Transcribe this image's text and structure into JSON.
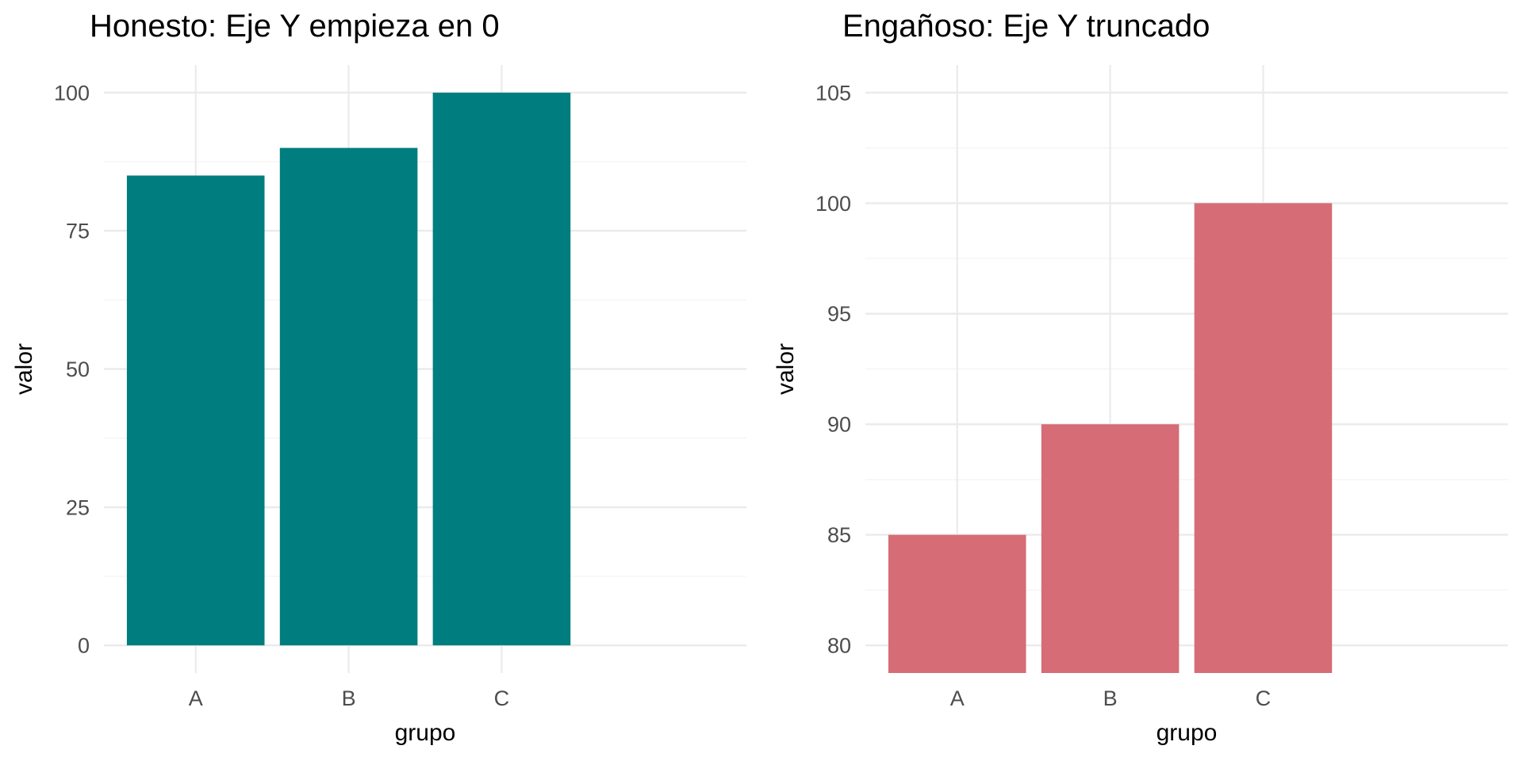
{
  "page": {
    "background_color": "#FFFFFF"
  },
  "styles": {
    "major_gridline_color": "#EBEBEB",
    "minor_gridline_color": "#F5F5F5",
    "tick_label_color": "#4D4D4D",
    "title_color": "#000000",
    "axis_title_color": "#000000",
    "honest_bar_color": "#007D7E",
    "deceptive_bar_color": "#D66C75"
  },
  "chart_data": [
    {
      "type": "bar",
      "name": "honest",
      "title": "Honesto: Eje Y empieza en 0",
      "xlabel": "grupo",
      "ylabel": "valor",
      "categories": [
        "A",
        "B",
        "C"
      ],
      "values": [
        85,
        90,
        100
      ],
      "bar_color": "#007D7E",
      "ylim": [
        -5,
        105
      ],
      "yticks": [
        0,
        25,
        50,
        75,
        100
      ],
      "minor_gridlines_between_ticks": true,
      "bar_base_value": 0,
      "grid": true,
      "legend": "none",
      "title_x_offset": 113
    },
    {
      "type": "bar",
      "name": "deceptive",
      "title": "Engañoso: Eje Y truncado",
      "xlabel": "grupo",
      "ylabel": "valor",
      "categories": [
        "A",
        "B",
        "C"
      ],
      "values": [
        85,
        90,
        100
      ],
      "bar_color": "#D66C75",
      "ylim": [
        78.75,
        106.25
      ],
      "yticks": [
        80,
        85,
        90,
        95,
        100,
        105
      ],
      "minor_gridlines_between_ticks": true,
      "bar_base_value": 78.75,
      "grid": true,
      "legend": "none",
      "title_x_offset": 102
    }
  ]
}
